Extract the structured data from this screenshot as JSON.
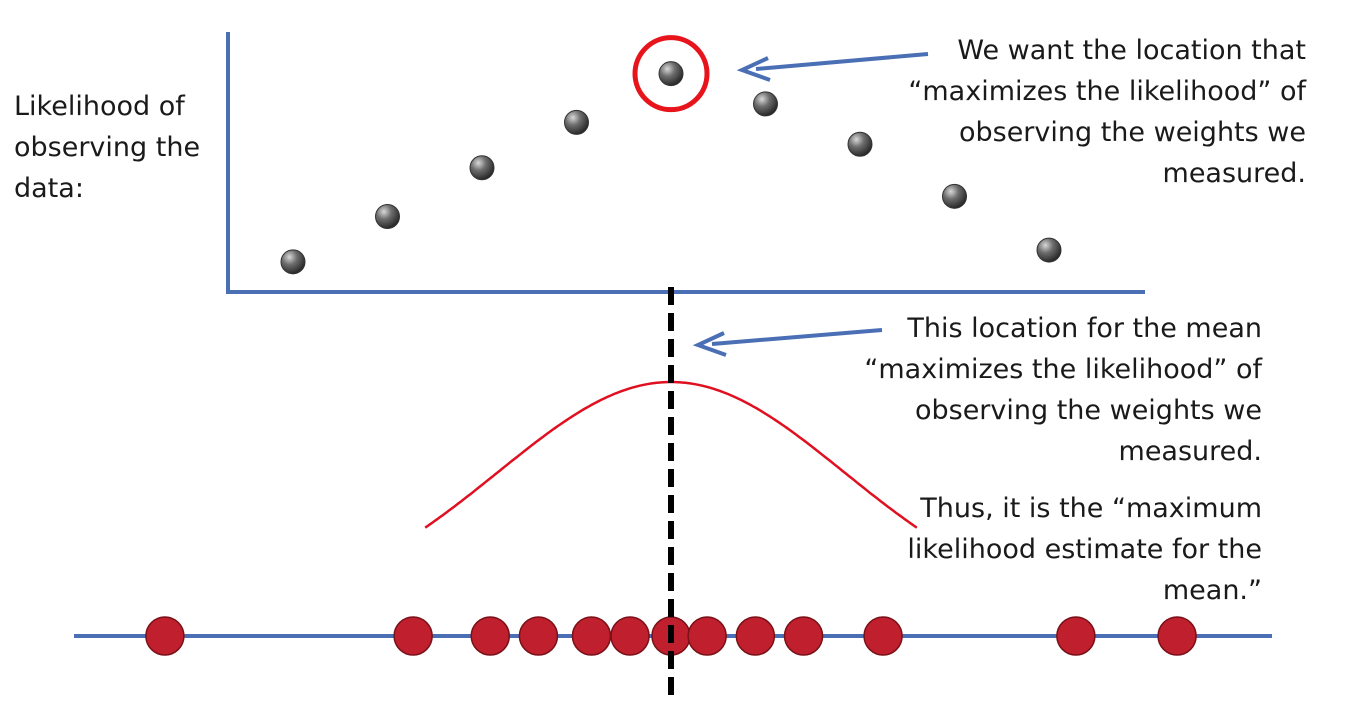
{
  "texts": {
    "ylabel_lines": [
      "Likelihood of",
      "observing the",
      "data:"
    ],
    "top_note_lines": [
      "We want the location that",
      "“maximizes the likelihood” of",
      "observing the weights we",
      "measured."
    ],
    "bottom_note_lines": [
      "This location for the mean",
      "“maximizes the likelihood” of",
      "observing the weights we",
      "measured."
    ],
    "conclusion_lines": [
      "Thus, it is the “maximum",
      "likelihood estimate for the",
      "mean.”"
    ]
  },
  "colors": {
    "axis": "#4a6fb5",
    "arrow": "#4a6fb5",
    "likelihood_point": "#5a5a5a",
    "highlight_circle": "#e8141c",
    "curve": "#e01020",
    "measurement": "#c0202e",
    "dashed_line": "#000000"
  },
  "chart_data": {
    "type": "scatter",
    "likelihood_points": [
      0.12,
      0.39,
      0.68,
      0.95,
      1.24,
      1.06,
      0.82,
      0.51,
      0.19
    ],
    "max_index": 4,
    "measurement_positions": [
      -2.1,
      -1.07,
      -0.75,
      -0.55,
      -0.33,
      -0.17,
      0.0,
      0.15,
      0.35,
      0.55,
      0.88,
      1.68,
      2.1
    ],
    "mean": 0.0,
    "sd": 0.72
  }
}
